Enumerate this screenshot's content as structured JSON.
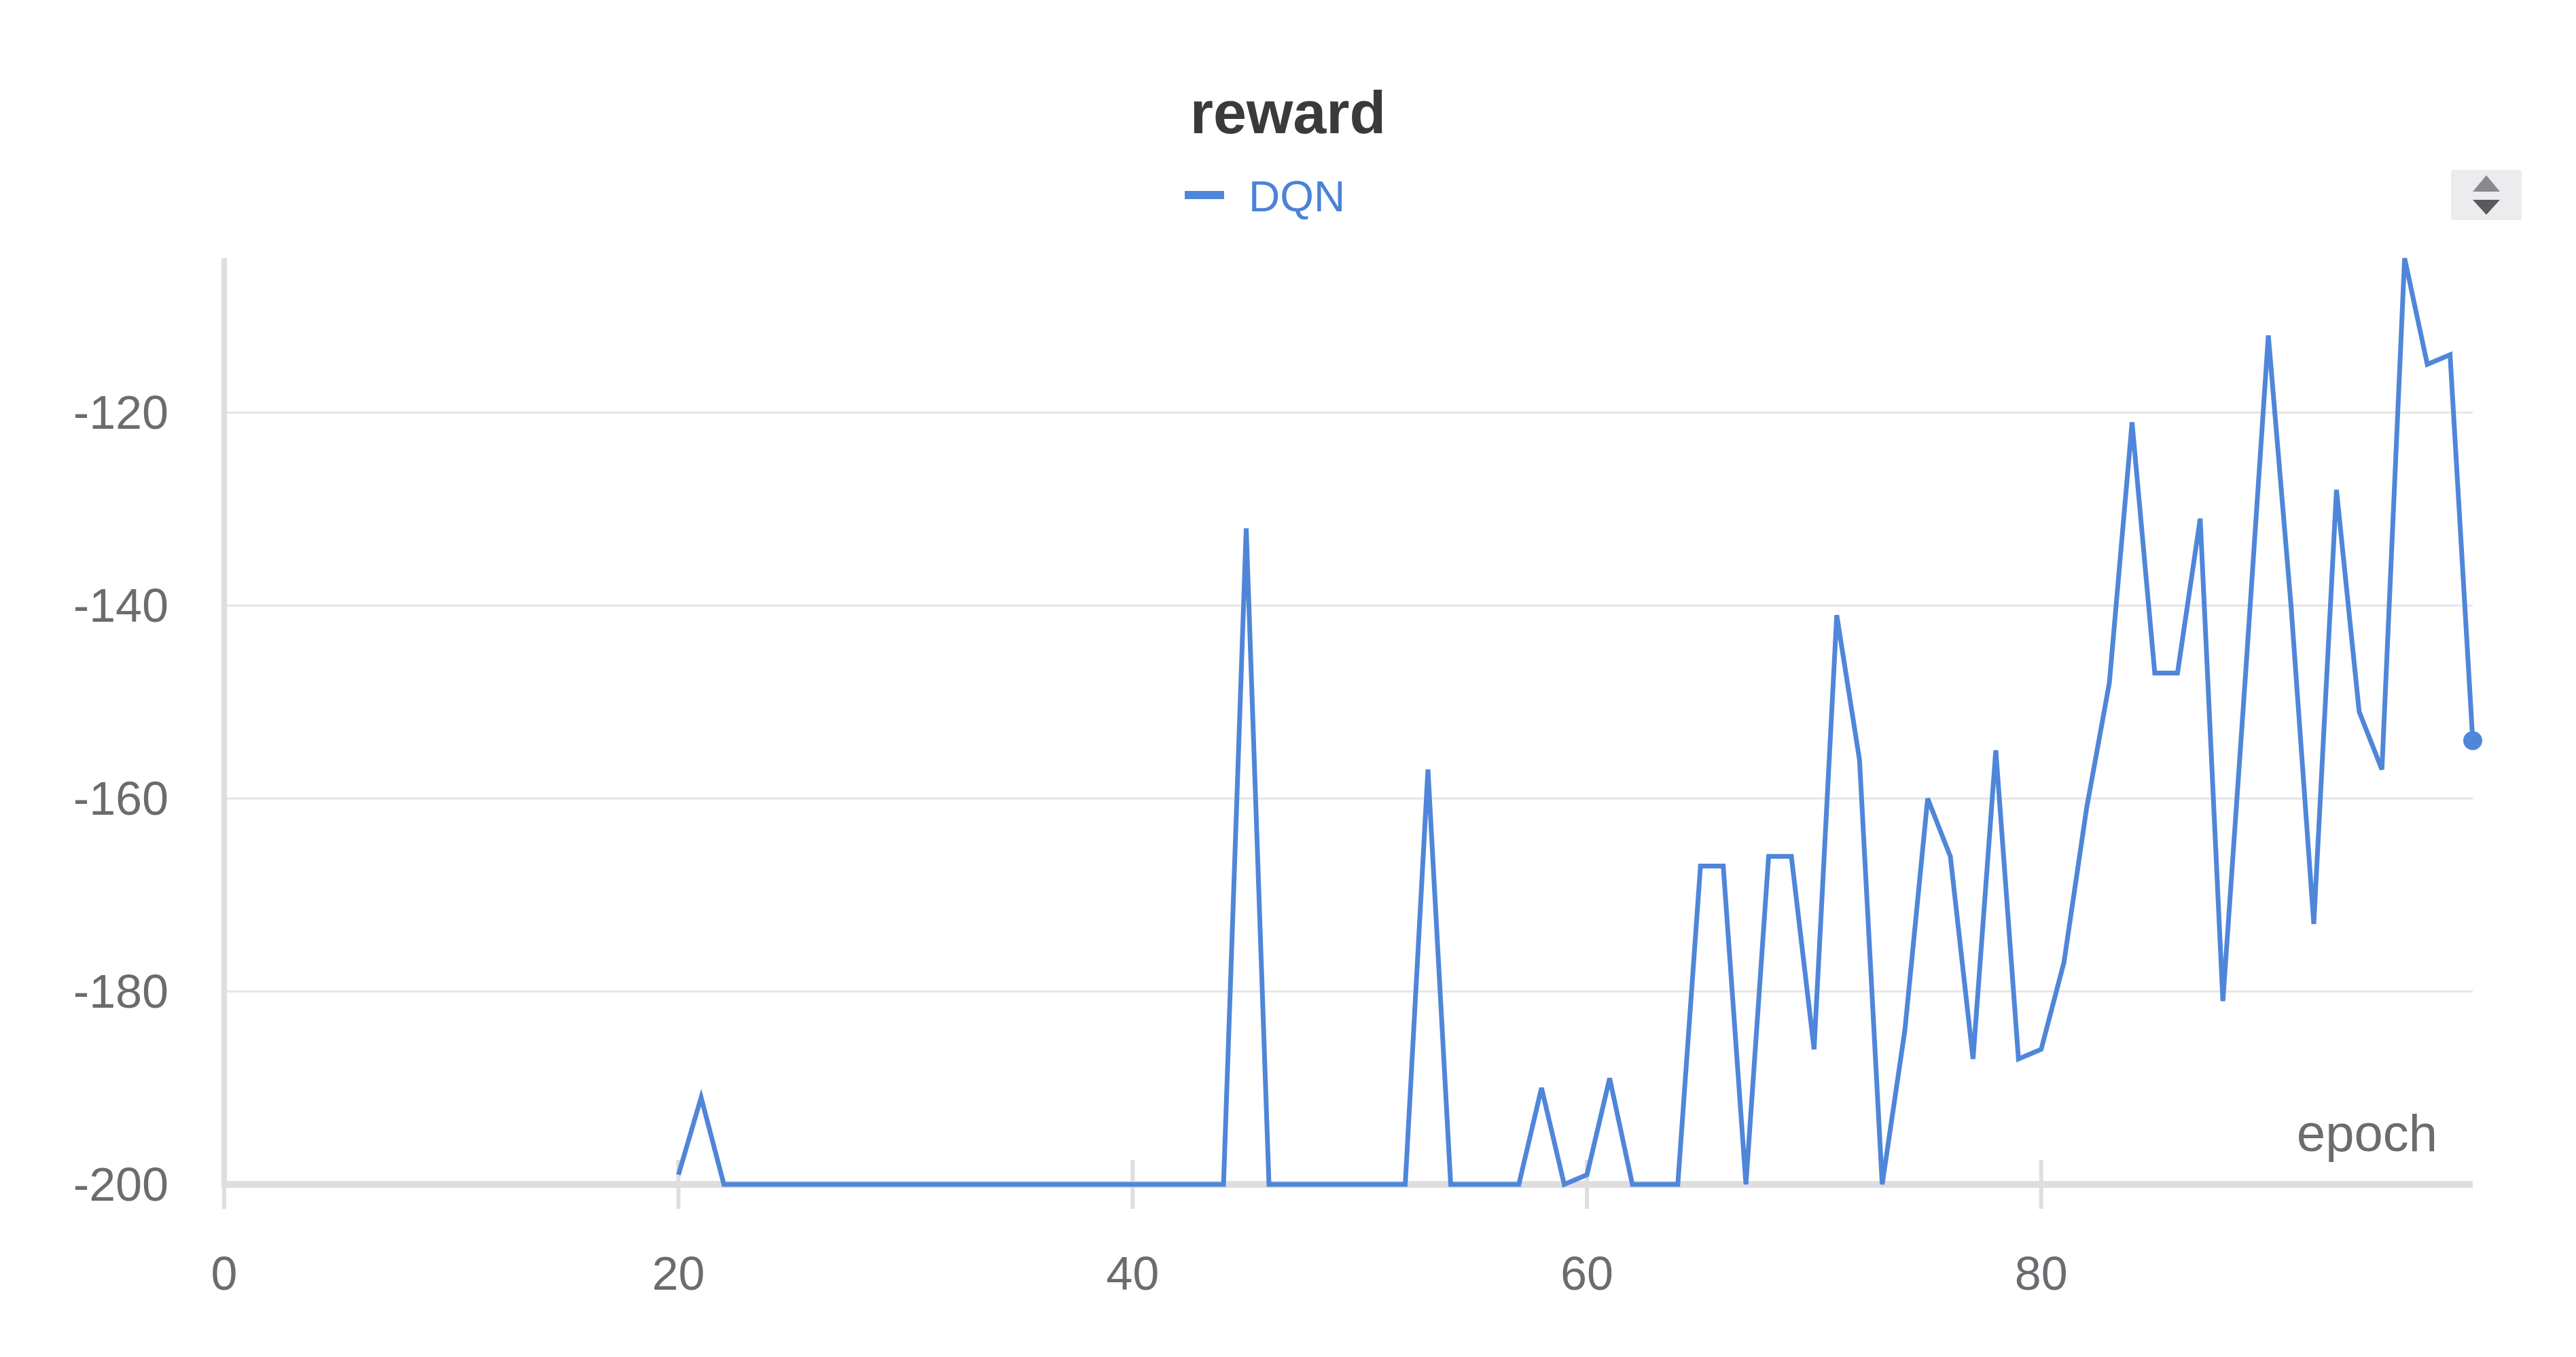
{
  "colors": {
    "series": "#4f86d9",
    "grid": "#e5e5e7",
    "axis": "#dedee0",
    "text": "#6b6b70",
    "title": "#3a3a3c",
    "legend_text": "#4a82d6",
    "control_bg": "#ececee",
    "control_icon": "#5a5a5e"
  },
  "controls": {
    "sort_icon": "sort-icon"
  },
  "chart_data": {
    "type": "line",
    "title": "reward",
    "xlabel": "epoch",
    "ylabel": "",
    "xlim": [
      0,
      99
    ],
    "ylim": [
      -200,
      -104
    ],
    "x_ticks": [
      0,
      20,
      40,
      60,
      80
    ],
    "y_ticks": [
      -200,
      -180,
      -160,
      -140,
      -120
    ],
    "grid": true,
    "legend_position": "top-center",
    "series": [
      {
        "name": "DQN",
        "last_point_marker": true,
        "x": [
          20,
          21,
          22,
          44,
          45,
          46,
          52,
          53,
          54,
          57,
          58,
          59,
          60,
          61,
          62,
          64,
          65,
          66,
          67,
          68,
          69,
          70,
          71,
          72,
          73,
          74,
          75,
          76,
          77,
          78,
          79,
          80,
          81,
          82,
          83,
          84,
          85,
          86,
          87,
          88,
          89,
          90,
          91,
          92,
          93,
          94,
          95,
          96,
          97,
          98,
          99
        ],
        "y": [
          -199,
          -191,
          -200,
          -200,
          -132,
          -200,
          -200,
          -157,
          -200,
          -200,
          -190,
          -200,
          -199,
          -189,
          -200,
          -200,
          -167,
          -167,
          -200,
          -166,
          -166,
          -186,
          -141,
          -156,
          -200,
          -184,
          -160,
          -166,
          -187,
          -155,
          -187,
          -186,
          -177,
          -161,
          -148,
          -121,
          -147,
          -147,
          -131,
          -181,
          -147,
          -112,
          -140,
          -173,
          -128,
          -151,
          -157,
          -104,
          -115,
          -114,
          -154
        ]
      }
    ]
  }
}
